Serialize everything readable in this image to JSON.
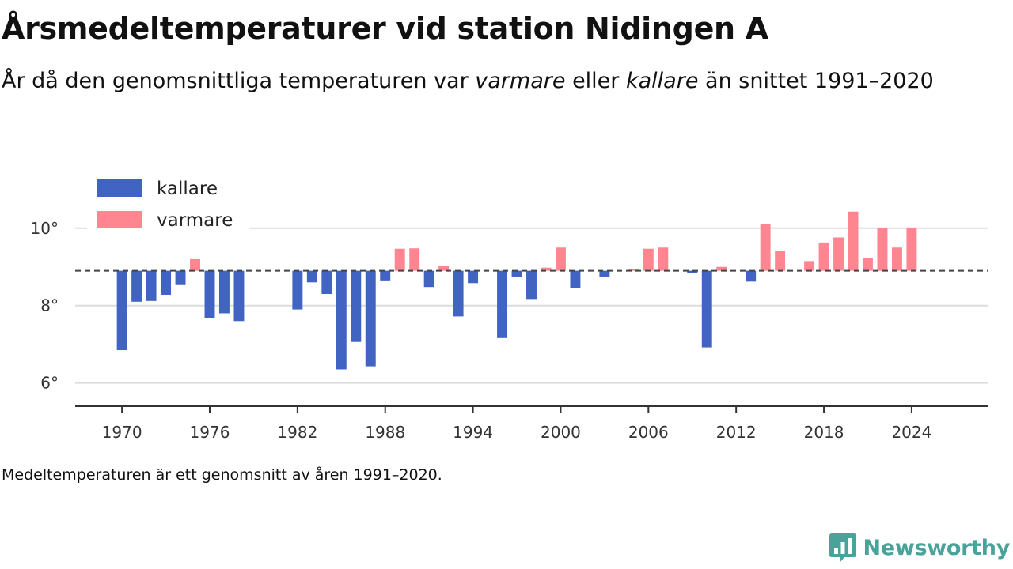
{
  "title": "Årsmedeltemperaturer vid station Nidingen A",
  "subtitle": {
    "part1": "År då den genomsnittliga temperaturen var ",
    "warm_word": "varmare",
    "part2": " eller ",
    "cold_word": "kallare",
    "part3": " än snittet 1991–2020"
  },
  "footnote": "Medeltemperaturen är ett genomsnitt av åren 1991–2020.",
  "brand": "Newsworthy",
  "colors": {
    "kallare": "#4164c2",
    "varmare": "#ff8691",
    "grid": "#dddddd",
    "axis": "#333333",
    "baseline": "#444444",
    "brand": "#4aa39a"
  },
  "chart_data": {
    "type": "bar",
    "baseline": 8.9,
    "ylim": [
      5.4,
      11.2
    ],
    "yticks": [
      6,
      8,
      10
    ],
    "ytick_labels": [
      "6°",
      "8°",
      "10°"
    ],
    "xlim": [
      1966.8,
      2029.2
    ],
    "xticks": [
      1970,
      1976,
      1982,
      1988,
      1994,
      2000,
      2006,
      2012,
      2018,
      2024
    ],
    "xtick_labels": [
      "1970",
      "1976",
      "1982",
      "1988",
      "1994",
      "2000",
      "2006",
      "2012",
      "2018",
      "2024"
    ],
    "legend": [
      {
        "key": "kallare",
        "label": "kallare"
      },
      {
        "key": "varmare",
        "label": "varmare"
      }
    ],
    "legend_position": "top-left",
    "grid": true,
    "x": [
      1970,
      1971,
      1972,
      1973,
      1974,
      1975,
      1976,
      1977,
      1978,
      1982,
      1983,
      1984,
      1985,
      1986,
      1987,
      1988,
      1989,
      1990,
      1991,
      1992,
      1993,
      1994,
      1996,
      1997,
      1998,
      1999,
      2000,
      2001,
      2003,
      2005,
      2006,
      2007,
      2009,
      2010,
      2011,
      2013,
      2014,
      2015,
      2017,
      2018,
      2019,
      2020,
      2021,
      2022,
      2023,
      2024
    ],
    "values": [
      6.85,
      8.1,
      8.12,
      8.28,
      8.53,
      9.2,
      7.68,
      7.8,
      7.6,
      7.9,
      8.6,
      8.3,
      6.35,
      7.06,
      6.43,
      8.65,
      9.47,
      9.48,
      8.48,
      9.02,
      7.72,
      8.58,
      7.16,
      8.75,
      8.17,
      8.98,
      9.5,
      8.45,
      8.75,
      8.95,
      9.47,
      9.5,
      8.85,
      6.92,
      9.0,
      8.62,
      10.1,
      9.42,
      9.15,
      9.63,
      9.76,
      10.43,
      9.22,
      10.0,
      9.5,
      10.0
    ]
  }
}
